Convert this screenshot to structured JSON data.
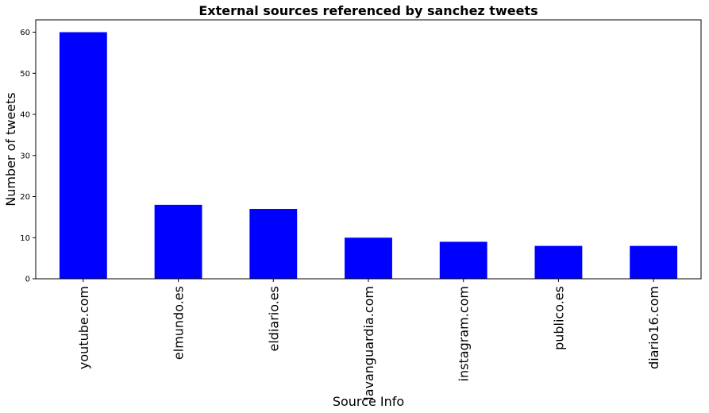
{
  "chart_data": {
    "type": "bar",
    "title": "External sources referenced by sanchez tweets",
    "xlabel": "Source Info",
    "ylabel": "Number of tweets",
    "categories": [
      "youtube.com",
      "elmundo.es",
      "eldiario.es",
      "lavanguardia.com",
      "instagram.com",
      "publico.es",
      "diario16.com"
    ],
    "values": [
      60,
      18,
      17,
      10,
      9,
      8,
      8
    ],
    "ylim": [
      0,
      63
    ],
    "yticks": [
      0,
      10,
      20,
      30,
      40,
      50,
      60
    ],
    "grid": false,
    "bar_color": "#0000ff"
  }
}
